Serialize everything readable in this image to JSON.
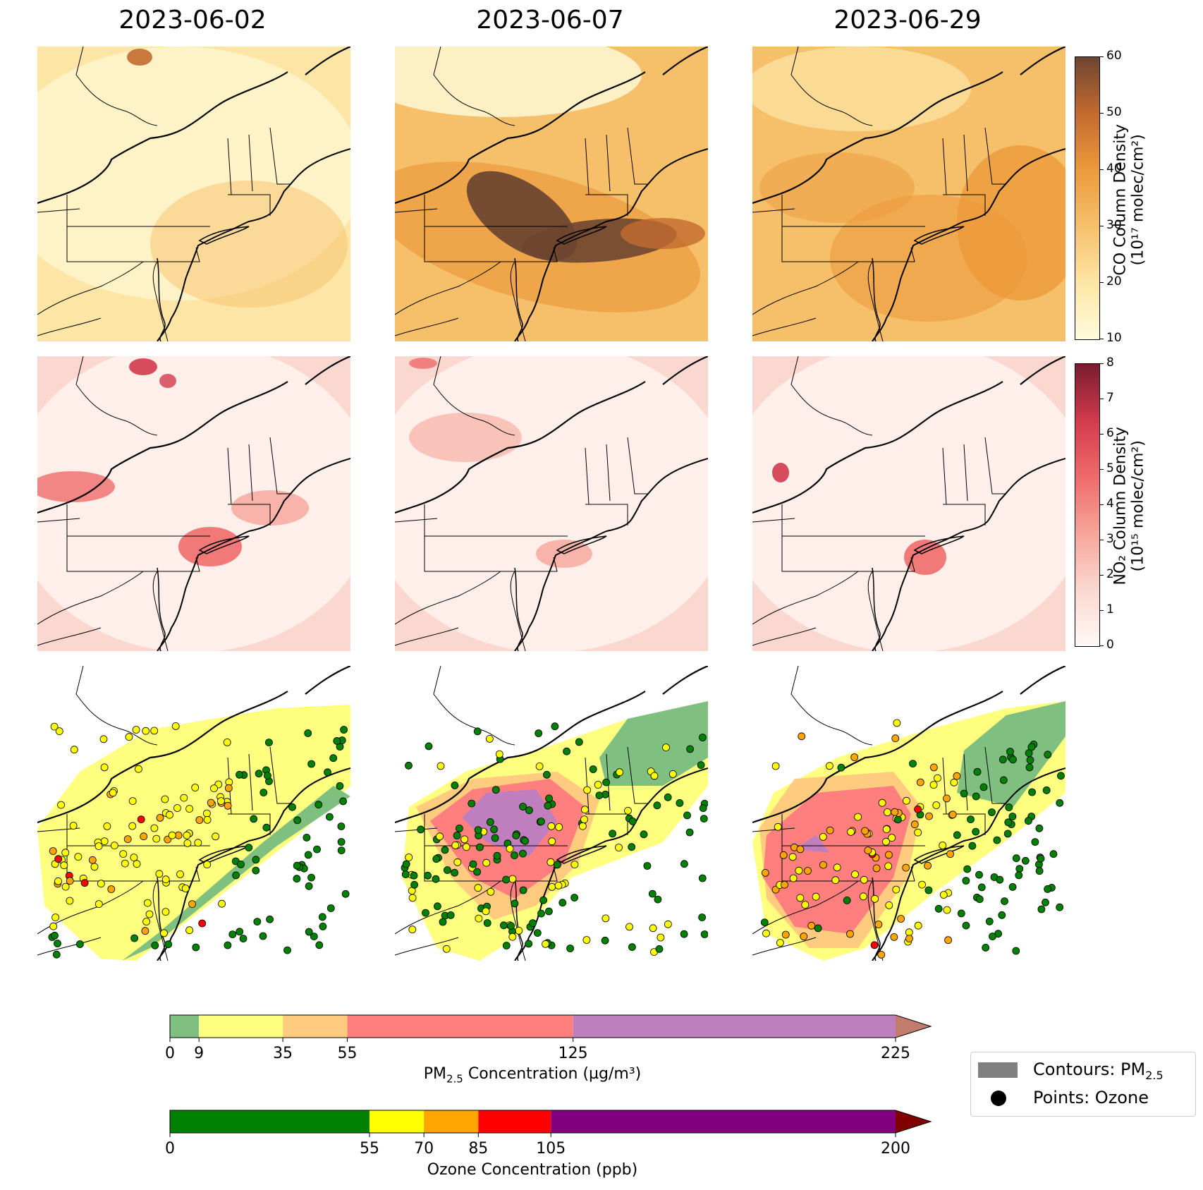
{
  "columns": [
    {
      "date": "2023-06-02"
    },
    {
      "date": "2023-06-07"
    },
    {
      "date": "2023-06-29"
    }
  ],
  "co_colorbar": {
    "label_line1": "CO Column Density",
    "label_line2": "(10¹⁷ molec/cm²)",
    "ticks": [
      "10",
      "20",
      "30",
      "40",
      "50",
      "60"
    ],
    "range": [
      10,
      60
    ],
    "colormap": "YlOrBr-like",
    "colors": [
      "#fffbdc",
      "#fde6a5",
      "#f6c06b",
      "#ec9a3b",
      "#c36a2f",
      "#6e4630"
    ]
  },
  "no2_colorbar": {
    "label_line1": "NO₂ Column Density",
    "label_line2": "(10¹⁵ molec/cm²)",
    "ticks": [
      "0",
      "1",
      "2",
      "3",
      "4",
      "5",
      "6",
      "7",
      "8"
    ],
    "range": [
      0,
      8
    ],
    "colors": [
      "#fff9f7",
      "#fbd8cf",
      "#f6a59a",
      "#ef6b6b",
      "#d23a4d",
      "#7a1b30"
    ]
  },
  "pm25_colorbar": {
    "label": "PM2.5 Concentration (µg/m³)",
    "label_main": "PM",
    "label_sub": "2.5",
    "label_rest": " Concentration (µg/m³)",
    "ticks": [
      "0",
      "9",
      "35",
      "55",
      "125",
      "225"
    ],
    "bins": [
      {
        "from": 0,
        "to": 9,
        "color": "#7fbf7f"
      },
      {
        "from": 9,
        "to": 35,
        "color": "#ffff7f"
      },
      {
        "from": 35,
        "to": 55,
        "color": "#ffcc7f"
      },
      {
        "from": 55,
        "to": 125,
        "color": "#ff7f7f"
      },
      {
        "from": 125,
        "to": 225,
        "color": "#bf7fbf"
      }
    ],
    "over_color": "#c27c6e"
  },
  "ozone_colorbar": {
    "label": "Ozone Concentration (ppb)",
    "ticks": [
      "0",
      "55",
      "70",
      "85",
      "105",
      "200"
    ],
    "bins": [
      {
        "from": 0,
        "to": 55,
        "color": "#008000"
      },
      {
        "from": 55,
        "to": 70,
        "color": "#ffff00"
      },
      {
        "from": 70,
        "to": 85,
        "color": "#ffa500"
      },
      {
        "from": 85,
        "to": 105,
        "color": "#ff0000"
      },
      {
        "from": 105,
        "to": 200,
        "color": "#800080"
      }
    ],
    "over_color": "#800000"
  },
  "legend": {
    "contours_label": "Contours: PM",
    "contours_sub": "2.5",
    "points_label": "Points: Ozone"
  }
}
